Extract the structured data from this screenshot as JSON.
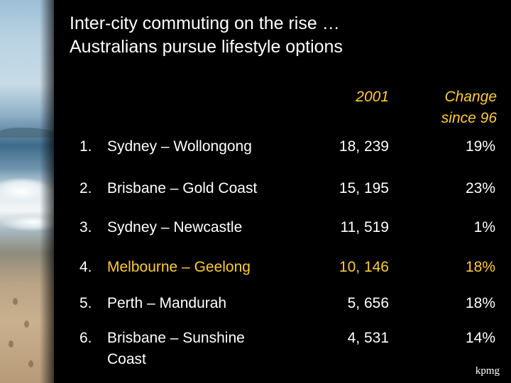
{
  "title_lines": [
    "Inter-city commuting on the rise …",
    "Australians pursue lifestyle options"
  ],
  "columns": {
    "col_2001": "2001",
    "col_change_line1": "Change",
    "col_change_line2": "since 96"
  },
  "rows": [
    {
      "num": "1.",
      "route": "Sydney – Wollongong",
      "value_2001": "18, 239",
      "change": "19%"
    },
    {
      "num": "2.",
      "route": "Brisbane – Gold Coast",
      "value_2001": "15, 195",
      "change": "23%"
    },
    {
      "num": "3.",
      "route": "Sydney – Newcastle",
      "value_2001": "11, 519",
      "change": "1%"
    },
    {
      "num": "4.",
      "route": "Melbourne – Geelong",
      "value_2001": "10, 146",
      "change": "18%",
      "highlight": true
    },
    {
      "num": "5.",
      "route": "Perth – Mandurah",
      "value_2001": "5, 656",
      "change": "18%"
    },
    {
      "num": "6.",
      "route_line1": "Brisbane – Sunshine",
      "route_line2": "Coast",
      "value_2001": "4, 531",
      "change": "14%"
    }
  ],
  "logo_text": "kpmg",
  "colors": {
    "background": "#000000",
    "text": "#ffffff",
    "accent": "#ffcc33"
  }
}
